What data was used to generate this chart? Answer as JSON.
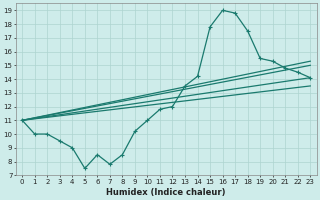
{
  "xlabel": "Humidex (Indice chaleur)",
  "bg_color": "#ceecea",
  "grid_color": "#aed4d0",
  "line_color": "#1a7a6e",
  "xlim": [
    -0.5,
    23.5
  ],
  "ylim": [
    7,
    19.5
  ],
  "xticks": [
    0,
    1,
    2,
    3,
    4,
    5,
    6,
    7,
    8,
    9,
    10,
    11,
    12,
    13,
    14,
    15,
    16,
    17,
    18,
    19,
    20,
    21,
    22,
    23
  ],
  "yticks": [
    7,
    8,
    9,
    10,
    11,
    12,
    13,
    14,
    15,
    16,
    17,
    18,
    19
  ],
  "line1_x": [
    0,
    1,
    2,
    3,
    4,
    5,
    6,
    7,
    8,
    9,
    10,
    11,
    12,
    13,
    14,
    15,
    16,
    17,
    18,
    19,
    20,
    21,
    22,
    23
  ],
  "line1_y": [
    11,
    10,
    10,
    9.5,
    9,
    7.5,
    8.5,
    7.8,
    8.5,
    10.2,
    11,
    11.8,
    12,
    13.5,
    14.2,
    17.8,
    19,
    18.8,
    17.5,
    15.5,
    15.3,
    14.8,
    14.5,
    14.1
  ],
  "straight_lines": [
    {
      "x": [
        0,
        23
      ],
      "y": [
        11,
        14.1
      ]
    },
    {
      "x": [
        0,
        23
      ],
      "y": [
        11,
        15.0
      ]
    },
    {
      "x": [
        0,
        23
      ],
      "y": [
        11,
        15.3
      ]
    },
    {
      "x": [
        0,
        23
      ],
      "y": [
        11,
        13.5
      ]
    }
  ],
  "marker_size": 2.5,
  "linewidth": 0.9,
  "tick_fontsize": 5,
  "xlabel_fontsize": 6
}
